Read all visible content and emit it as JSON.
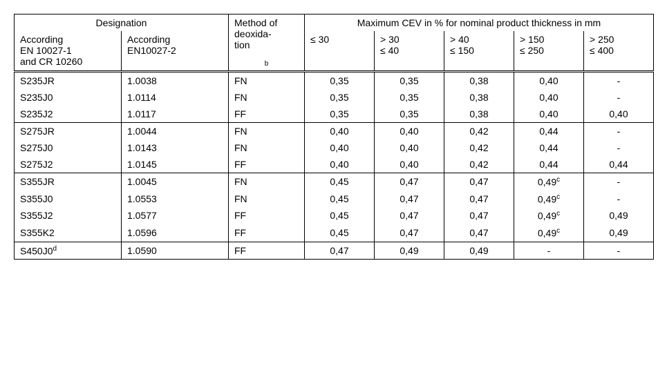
{
  "headers": {
    "designation": "Designation",
    "method": "Method of deoxida-tion",
    "method_sup": "b",
    "cev_title": "Maximum CEV in % for nominal product thickness in mm",
    "acc1_line1": "According",
    "acc1_line2": "EN 10027-1",
    "acc1_line3": "and CR 10260",
    "acc2_line1": "According",
    "acc2_line2": "EN10027-2",
    "t1": "≤ 30",
    "t2a": "> 30",
    "t2b": "≤ 40",
    "t3a": "> 40",
    "t3b": "≤ 150",
    "t4a": "> 150",
    "t4b": "≤ 250",
    "t5a": "> 250",
    "t5b": "≤ 400"
  },
  "rows": [
    {
      "d1": "S235JR",
      "d2": "1.0038",
      "m": "FN",
      "v": [
        "0,35",
        "0,35",
        "0,38",
        "0,40",
        "-"
      ],
      "sup4": ""
    },
    {
      "d1": "S235J0",
      "d2": "1.0114",
      "m": "FN",
      "v": [
        "0,35",
        "0,35",
        "0,38",
        "0,40",
        "-"
      ],
      "sup4": ""
    },
    {
      "d1": "S235J2",
      "d2": "1.0117",
      "m": "FF",
      "v": [
        "0,35",
        "0,35",
        "0,38",
        "0,40",
        "0,40"
      ],
      "sup4": ""
    },
    {
      "d1": "S275JR",
      "d2": "1.0044",
      "m": "FN",
      "v": [
        "0,40",
        "0,40",
        "0,42",
        "0,44",
        "-"
      ],
      "sup4": ""
    },
    {
      "d1": "S275J0",
      "d2": "1.0143",
      "m": "FN",
      "v": [
        "0,40",
        "0,40",
        "0,42",
        "0,44",
        "-"
      ],
      "sup4": ""
    },
    {
      "d1": "S275J2",
      "d2": "1.0145",
      "m": "FF",
      "v": [
        "0,40",
        "0,40",
        "0,42",
        "0,44",
        "0,44"
      ],
      "sup4": ""
    },
    {
      "d1": "S355JR",
      "d2": "1.0045",
      "m": "FN",
      "v": [
        "0,45",
        "0,47",
        "0,47",
        "0,49",
        "-"
      ],
      "sup4": "c"
    },
    {
      "d1": "S355J0",
      "d2": "1.0553",
      "m": "FN",
      "v": [
        "0,45",
        "0,47",
        "0,47",
        "0,49",
        "-"
      ],
      "sup4": "c"
    },
    {
      "d1": "S355J2",
      "d2": "1.0577",
      "m": "FF",
      "v": [
        "0,45",
        "0,47",
        "0,47",
        "0,49",
        "0,49"
      ],
      "sup4": "c"
    },
    {
      "d1": "S355K2",
      "d2": "1.0596",
      "m": "FF",
      "v": [
        "0,45",
        "0,47",
        "0,47",
        "0,49",
        "0,49"
      ],
      "sup4": "c"
    },
    {
      "d1": "S450J0",
      "d1sup": "d",
      "d2": "1.0590",
      "m": "FF",
      "v": [
        "0,47",
        "0,49",
        "0,49",
        "-",
        "-"
      ],
      "sup4": ""
    }
  ],
  "groups": [
    3,
    3,
    4,
    1
  ]
}
